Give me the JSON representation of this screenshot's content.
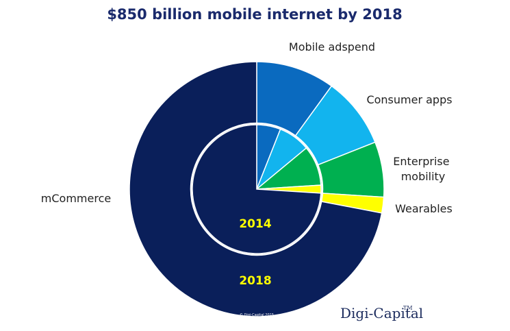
{
  "chart_data": {
    "type": "pie",
    "title": "$850 billion mobile internet by 2018",
    "categories": [
      "Mobile adspend",
      "Consumer apps",
      "Enterprise mobility",
      "Wearables",
      "mCommerce"
    ],
    "series": [
      {
        "name": "2018",
        "values": [
          10,
          9,
          7,
          2,
          72
        ]
      },
      {
        "name": "2014",
        "values": [
          6,
          8,
          10,
          2,
          74
        ]
      }
    ],
    "colors": [
      "#0a6abf",
      "#12b4ee",
      "#00b050",
      "#ffff00",
      "#0a1f5a"
    ],
    "legend": "none",
    "inner_label": "2014",
    "outer_label": "2018"
  },
  "brand": {
    "name": "Digi-Capital",
    "tm": "TM",
    "copyright": "© Digi-Capital 2015"
  }
}
